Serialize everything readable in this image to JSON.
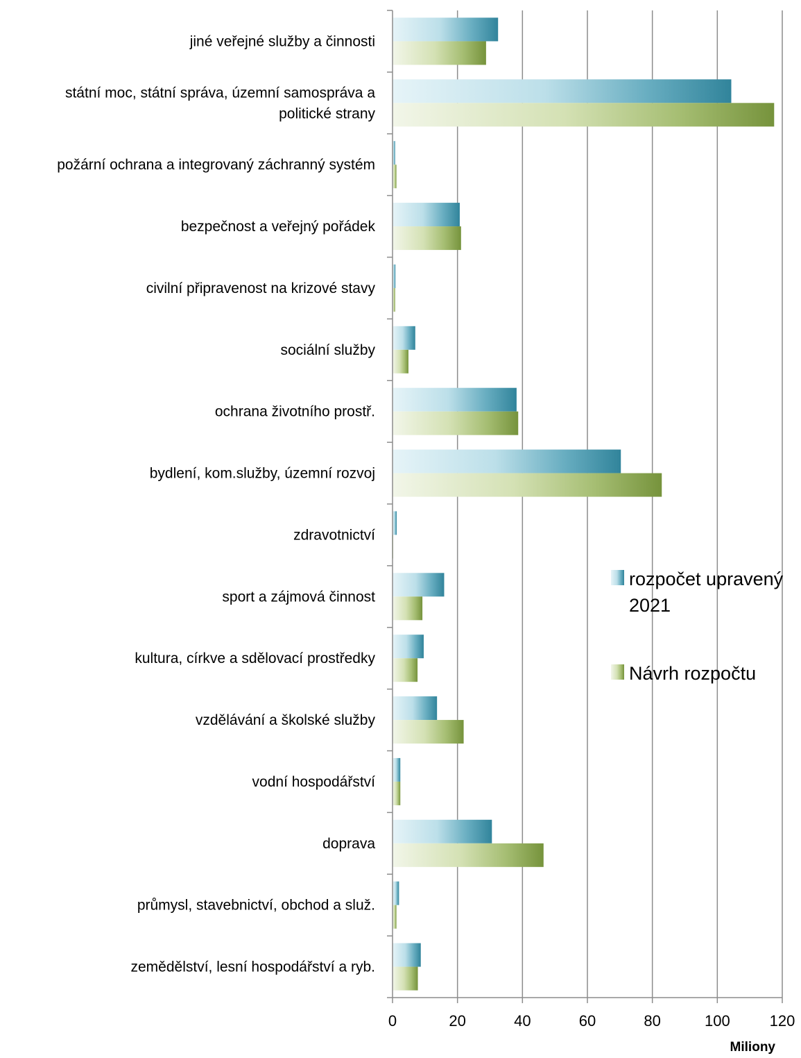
{
  "chart_data": {
    "type": "bar",
    "orientation": "horizontal",
    "categories": [
      "jiné veřejné služby a činnosti",
      [
        "státní moc, státní správa, územní samospráva a",
        "politické strany"
      ],
      "požární ochrana a integrovaný záchranný systém",
      "bezpečnost a veřejný pořádek",
      "civilní připravenost na krizové stavy",
      "sociální služby",
      "ochrana životního prostř.",
      "bydlení, kom.služby, územní rozvoj",
      "zdravotnictví",
      "sport a zájmová činnost",
      "kultura, církve a sdělovací prostředky",
      "vzdělávání a školské služby",
      "vodní hospodářství",
      "doprava",
      "průmysl, stavebnictví, obchod a služ.",
      "zemědělství, lesní hospodářství a ryb."
    ],
    "series": [
      {
        "name": [
          "rozpočet upravený",
          "2021"
        ],
        "color": "#31849B",
        "values": [
          32.5,
          104.3,
          0.8,
          20.7,
          0.9,
          7.0,
          38.2,
          70.3,
          1.3,
          15.9,
          9.6,
          13.7,
          2.4,
          30.6,
          2.0,
          8.7
        ]
      },
      {
        "name": "Návrh rozpočtu",
        "color": "#76933C",
        "values": [
          28.8,
          117.5,
          1.2,
          21.1,
          0.8,
          4.9,
          38.7,
          82.9,
          0.2,
          9.2,
          7.7,
          21.9,
          2.4,
          46.5,
          1.2,
          7.8
        ]
      }
    ],
    "xlim": [
      0,
      120
    ],
    "xticks": [
      0,
      20,
      40,
      60,
      80,
      100,
      120
    ],
    "xunit": "Miliony",
    "grid": "vertical",
    "legend": "right"
  }
}
